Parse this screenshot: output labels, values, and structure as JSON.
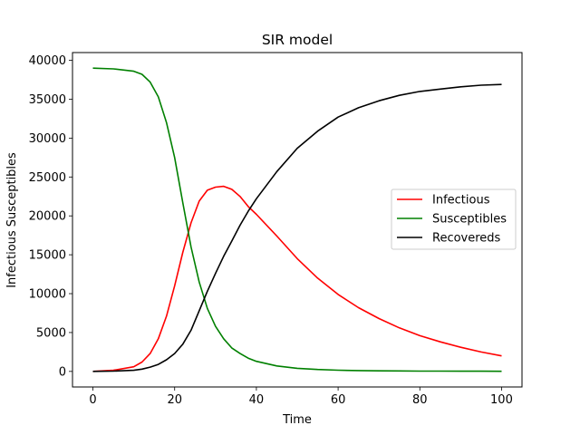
{
  "chart_data": {
    "type": "line",
    "title": "SIR model",
    "xlabel": "Time",
    "ylabel": "Infectious Susceptibles",
    "xlim": [
      -5,
      105
    ],
    "ylim": [
      -2000,
      41000
    ],
    "xticks": [
      0,
      20,
      40,
      60,
      80,
      100
    ],
    "yticks": [
      0,
      5000,
      10000,
      15000,
      20000,
      25000,
      30000,
      35000,
      40000
    ],
    "grid": false,
    "legend_position": "center-right",
    "x": [
      0,
      5,
      10,
      12,
      14,
      16,
      18,
      20,
      22,
      24,
      26,
      28,
      30,
      32,
      34,
      36,
      38,
      40,
      45,
      50,
      55,
      60,
      65,
      70,
      75,
      80,
      85,
      90,
      95,
      100
    ],
    "series": [
      {
        "name": "Infectious",
        "color": "#ff0000",
        "values": [
          0,
          150,
          600,
          1200,
          2300,
          4200,
          7100,
          11000,
          15300,
          19100,
          21900,
          23300,
          23700,
          23800,
          23400,
          22500,
          21200,
          20200,
          17400,
          14500,
          12000,
          9900,
          8200,
          6800,
          5600,
          4600,
          3800,
          3100,
          2500,
          2000
        ]
      },
      {
        "name": "Susceptibles",
        "color": "#008000",
        "values": [
          39000,
          38900,
          38600,
          38200,
          37200,
          35300,
          32000,
          27500,
          21700,
          16000,
          11500,
          8100,
          5800,
          4200,
          3000,
          2300,
          1700,
          1300,
          700,
          400,
          250,
          160,
          110,
          80,
          60,
          45,
          35,
          28,
          22,
          18
        ]
      },
      {
        "name": "Recovereds",
        "color": "#000000",
        "values": [
          0,
          40,
          150,
          300,
          550,
          900,
          1500,
          2300,
          3500,
          5300,
          7800,
          10300,
          12600,
          14800,
          16800,
          18800,
          20600,
          22200,
          25700,
          28700,
          30900,
          32700,
          33900,
          34800,
          35500,
          36000,
          36300,
          36600,
          36800,
          36900
        ]
      }
    ]
  }
}
